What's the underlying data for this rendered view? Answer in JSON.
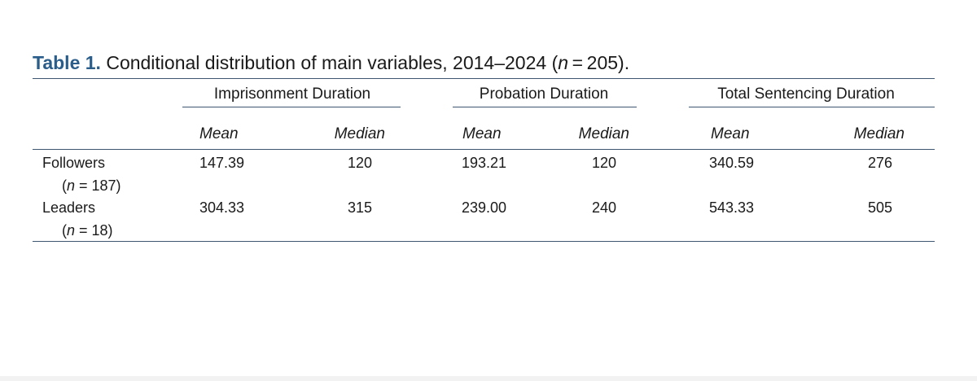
{
  "caption": {
    "label": "Table 1.",
    "text_before": " Conditional distribution of main variables, 2014–2024 (",
    "n_var": "n",
    "text_after": " = 205)."
  },
  "table": {
    "groups": [
      {
        "label": "Imprisonment Duration"
      },
      {
        "label": "Probation Duration"
      },
      {
        "label": "Total Sentencing Duration"
      }
    ],
    "subheaders": [
      "Mean",
      "Median",
      "Mean",
      "Median",
      "Mean",
      "Median"
    ],
    "rows": [
      {
        "label": "Followers",
        "n_open": "(",
        "n_var": "n",
        "n_text": " = 187)",
        "values": [
          "147.39",
          "120",
          "193.21",
          "120",
          "340.59",
          "276"
        ]
      },
      {
        "label": "Leaders",
        "n_open": "(",
        "n_var": "n",
        "n_text": " = 18)",
        "values": [
          "304.33",
          "315",
          "239.00",
          "240",
          "543.33",
          "505"
        ]
      }
    ]
  }
}
